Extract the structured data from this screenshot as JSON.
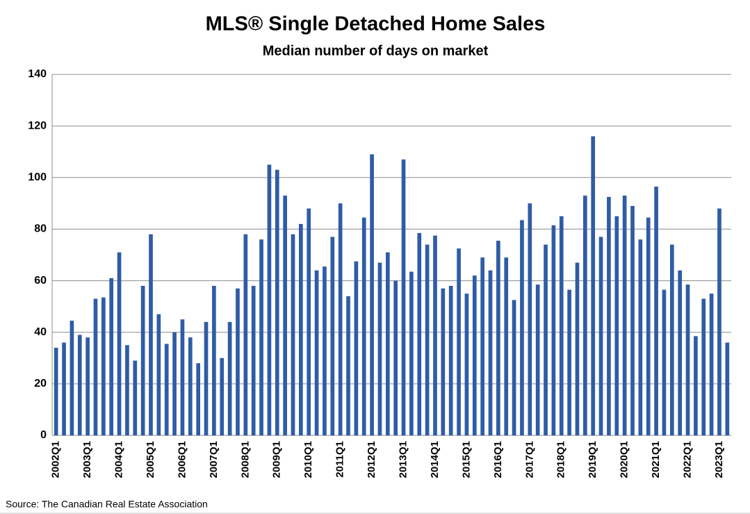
{
  "chart_data": {
    "type": "bar",
    "title": "MLS® Single Detached Home Sales",
    "subtitle": "Median number of days on market",
    "source": "Source: The Canadian Real Estate Association",
    "categories": [
      "2002Q1",
      null,
      null,
      null,
      "2003Q1",
      null,
      null,
      null,
      "2004Q1",
      null,
      null,
      null,
      "2005Q1",
      null,
      null,
      null,
      "2006Q1",
      null,
      null,
      null,
      "2007Q1",
      null,
      null,
      null,
      "2008Q1",
      null,
      null,
      null,
      "2009Q1",
      null,
      null,
      null,
      "2010Q1",
      null,
      null,
      null,
      "2011Q1",
      null,
      null,
      null,
      "2012Q1",
      null,
      null,
      null,
      "2013Q1",
      null,
      null,
      null,
      "2014Q1",
      null,
      null,
      null,
      "2015Q1",
      null,
      null,
      null,
      "2016Q1",
      null,
      null,
      null,
      "2017Q1",
      null,
      null,
      null,
      "2018Q1",
      null,
      null,
      null,
      "2019Q1",
      null,
      null,
      null,
      "2020Q1",
      null,
      null,
      null,
      "2021Q1",
      null,
      null,
      null,
      "2022Q1",
      null,
      null,
      null,
      "2023Q1",
      null
    ],
    "values": [
      34,
      36,
      44.5,
      39,
      38,
      53,
      53.5,
      61,
      71,
      35,
      29,
      58,
      78,
      47,
      35.5,
      40,
      45,
      38,
      28,
      44,
      58,
      30,
      44,
      57,
      78,
      58,
      76,
      105,
      103,
      93,
      78,
      82,
      88,
      64,
      65.5,
      77,
      90,
      54,
      67.5,
      84.5,
      109,
      67,
      71,
      60,
      107,
      63.5,
      78.5,
      74,
      77.5,
      57,
      58,
      72.5,
      55,
      62,
      69,
      64,
      75.5,
      69,
      52.5,
      83.5,
      90,
      58.5,
      74,
      81.5,
      85,
      56.5,
      67,
      93,
      116,
      77,
      92.5,
      85,
      93,
      89,
      76,
      84.5,
      96.5,
      56.5,
      74,
      64,
      58.5,
      38.5,
      53,
      55,
      88,
      36
    ],
    "color": "#2f5ca6",
    "ylim": [
      0,
      140
    ],
    "yticks": [
      0,
      20,
      40,
      60,
      80,
      100,
      120,
      140
    ],
    "grid": true
  }
}
